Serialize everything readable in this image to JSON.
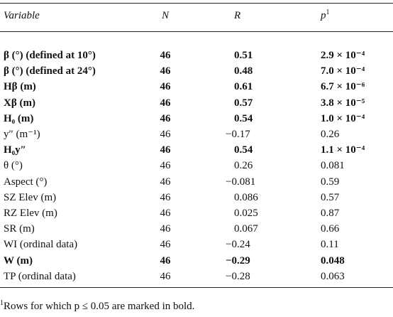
{
  "table": {
    "header": [
      "Variable",
      "N",
      "R",
      "p"
    ],
    "header_note_mark": "1",
    "rows": [
      {
        "bold": true,
        "cells": [
          "β (°) (defined at 10°)",
          46,
          "0.51",
          "2.9 × 10⁻⁴"
        ]
      },
      {
        "bold": true,
        "cells": [
          "β (°) (defined at 24°)",
          46,
          "0.48",
          "7.0 × 10⁻⁴"
        ]
      },
      {
        "bold": true,
        "cells": [
          "Hβ (m)",
          46,
          "0.61",
          "6.7 × 10⁻⁶"
        ]
      },
      {
        "bold": true,
        "cells": [
          "Xβ (m)",
          46,
          "0.57",
          "3.8 × 10⁻⁵"
        ]
      },
      {
        "bold": true,
        "cells": [
          "H₀ (m)",
          46,
          "0.54",
          "1.0 × 10⁻⁴"
        ]
      },
      {
        "bold": false,
        "cells": [
          "y″ (m⁻¹)",
          46,
          "−0.17",
          "0.26"
        ]
      },
      {
        "bold": true,
        "cells": [
          "H₀y″",
          46,
          "0.54",
          "1.1 × 10⁻⁴"
        ]
      },
      {
        "bold": false,
        "cells": [
          "θ (°)",
          46,
          "0.26",
          "0.081"
        ]
      },
      {
        "bold": false,
        "cells": [
          "Aspect (°)",
          46,
          "−0.081",
          "0.59"
        ]
      },
      {
        "bold": false,
        "cells": [
          "SZ Elev (m)",
          46,
          "0.086",
          "0.57"
        ]
      },
      {
        "bold": false,
        "cells": [
          "RZ Elev (m)",
          46,
          "0.025",
          "0.87"
        ]
      },
      {
        "bold": false,
        "cells": [
          "SR (m)",
          46,
          "0.067",
          "0.66"
        ]
      },
      {
        "bold": false,
        "cells": [
          "WI (ordinal data)",
          46,
          "−0.24",
          "0.11"
        ]
      },
      {
        "bold": true,
        "cells": [
          "W (m)",
          46,
          "−0.29",
          "0.048"
        ]
      },
      {
        "bold": false,
        "cells": [
          "TP (ordinal data)",
          46,
          "−0.28",
          "0.063"
        ]
      }
    ],
    "footnote_mark": "1",
    "footnote": "Rows for which p ≤ 0.05 are marked in bold."
  }
}
